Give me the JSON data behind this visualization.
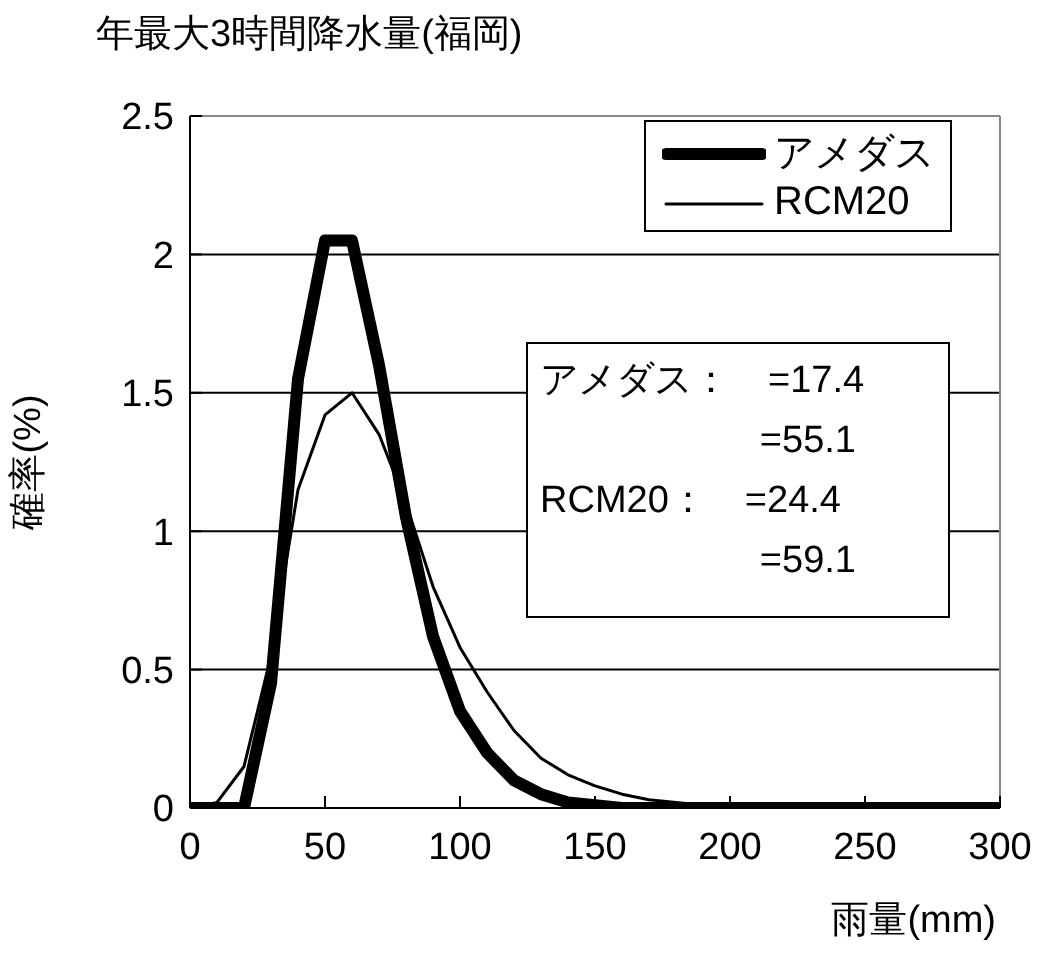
{
  "chart_data": {
    "type": "line",
    "title": "年最大3時間降水量(福岡)",
    "xlabel": "雨量(mm)",
    "ylabel": "確率(%)",
    "x": [
      0,
      10,
      20,
      30,
      40,
      50,
      60,
      70,
      80,
      90,
      100,
      110,
      120,
      130,
      140,
      150,
      160,
      170,
      180,
      190,
      200,
      210,
      220,
      230,
      240,
      250,
      260,
      270,
      280,
      290,
      300
    ],
    "series": [
      {
        "name": "アメダス",
        "color": "#000000",
        "values": [
          0,
          0,
          0,
          0.45,
          1.55,
          2.05,
          2.05,
          1.6,
          1.05,
          0.62,
          0.35,
          0.2,
          0.1,
          0.05,
          0.02,
          0.01,
          0,
          0,
          0,
          0,
          0,
          0,
          0,
          0,
          0,
          0,
          0,
          0,
          0,
          0,
          0
        ]
      },
      {
        "name": "RCM20",
        "color": "#000000",
        "values": [
          0,
          0.02,
          0.15,
          0.55,
          1.15,
          1.42,
          1.5,
          1.35,
          1.1,
          0.8,
          0.58,
          0.42,
          0.28,
          0.18,
          0.12,
          0.08,
          0.05,
          0.03,
          0.02,
          0.01,
          0,
          0,
          0,
          0,
          0,
          0,
          0,
          0,
          0,
          0,
          0
        ]
      }
    ],
    "xlim": [
      0,
      300
    ],
    "xticks": [
      0,
      50,
      100,
      150,
      200,
      250,
      300
    ],
    "ylim": [
      0,
      2.5
    ],
    "yticks": [
      0,
      0.5,
      1,
      1.5,
      2,
      2.5
    ],
    "grid": "y",
    "legend": "top right",
    "marker": "none",
    "line_style": "solid",
    "annotations": [
      "アメダス：　=17.4",
      "=55.1",
      "RCM20：　=24.4",
      "=59.1"
    ]
  }
}
